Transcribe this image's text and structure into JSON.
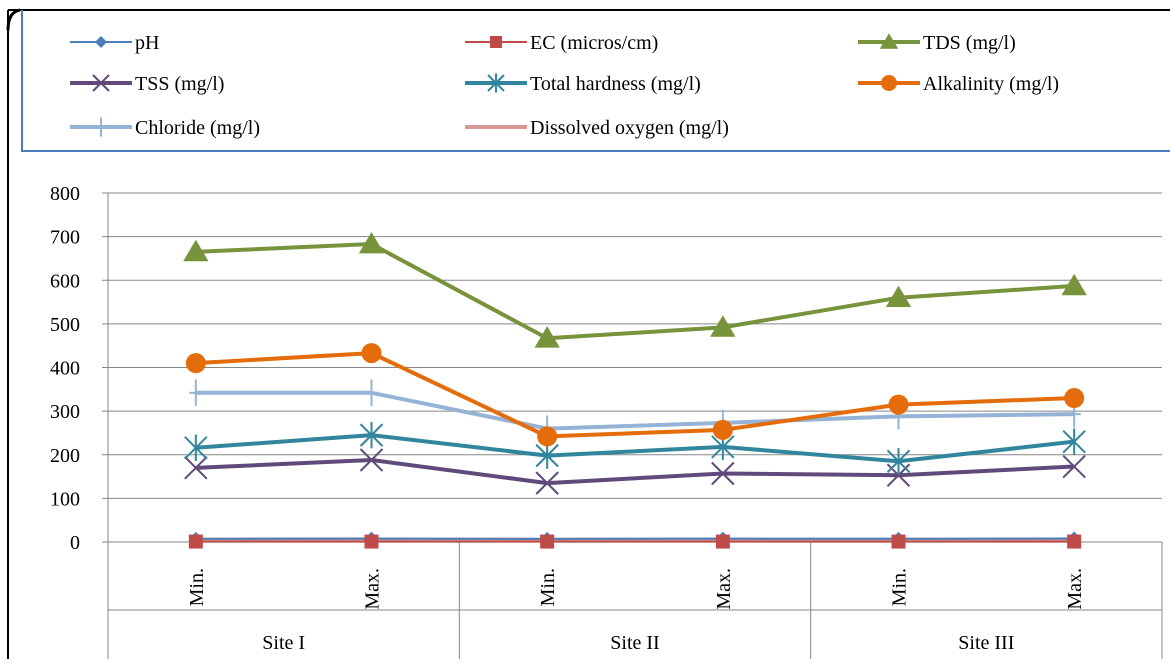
{
  "chart_data": {
    "type": "line",
    "title": "",
    "xlabel": "",
    "ylabel": "",
    "ylim": [
      0,
      800
    ],
    "yticks": [
      0,
      100,
      200,
      300,
      400,
      500,
      600,
      700,
      800
    ],
    "grid": "horizontal",
    "legend_position": "top",
    "categories": [
      "Min.",
      "Max.",
      "Min.",
      "Max.",
      "Min.",
      "Max."
    ],
    "groups": [
      {
        "label": "Site I",
        "span": 2
      },
      {
        "label": "Site II",
        "span": 2
      },
      {
        "label": "Site III",
        "span": 2
      }
    ],
    "series": [
      {
        "name": "pH",
        "color": "#4a7ebb",
        "marker": "diamond",
        "values": [
          7.2,
          7.8,
          7.1,
          7.6,
          7.3,
          7.9
        ]
      },
      {
        "name": "EC (micros/cm)",
        "color": "#be4b48",
        "marker": "square",
        "values": [
          1,
          1,
          1,
          1,
          1,
          1
        ]
      },
      {
        "name": "TDS (mg/l)",
        "color": "#77933c",
        "marker": "triangle",
        "values": [
          665,
          683,
          467,
          492,
          560,
          587
        ]
      },
      {
        "name": "TSS (mg/l)",
        "color": "#604a7b",
        "marker": "x",
        "values": [
          170,
          188,
          135,
          157,
          153,
          173
        ]
      },
      {
        "name": "Total hardness (mg/l)",
        "color": "#31859c",
        "marker": "star",
        "values": [
          216,
          245,
          198,
          218,
          185,
          230
        ]
      },
      {
        "name": "Alkalinity (mg/l)",
        "color": "#e46c0a",
        "marker": "circle",
        "values": [
          410,
          433,
          242,
          257,
          315,
          330
        ]
      },
      {
        "name": "Chloride (mg/l)",
        "color": "#95b3d7",
        "marker": "plus",
        "values": [
          342,
          342,
          260,
          273,
          288,
          293
        ]
      },
      {
        "name": "Dissolved oxygen (mg/l)",
        "color": "#d99795",
        "marker": "none",
        "values": [
          5.5,
          5.9,
          5.2,
          5.6,
          5.4,
          5.8
        ]
      }
    ]
  }
}
